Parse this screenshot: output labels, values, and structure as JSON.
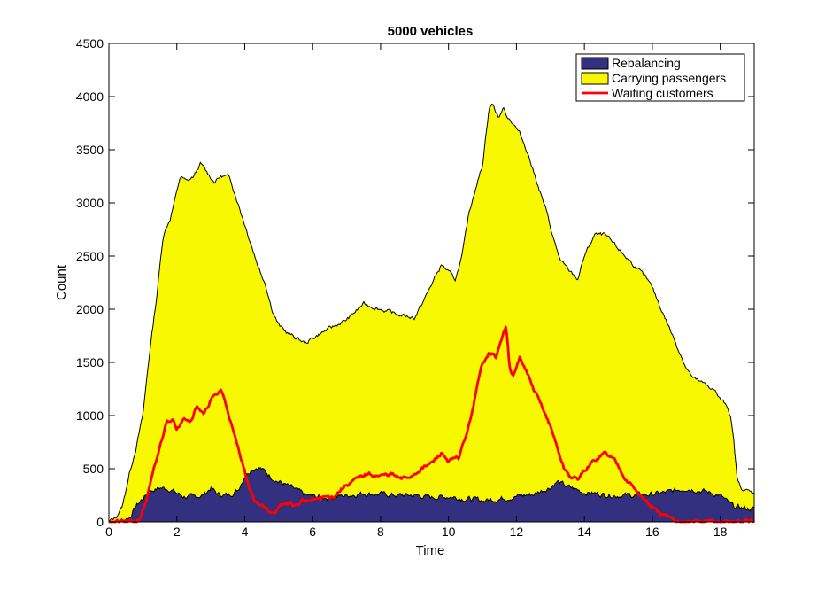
{
  "chart_data": {
    "type": "area",
    "title": "5000 vehicles",
    "xlabel": "Time",
    "ylabel": "Count",
    "xlim": [
      0,
      19
    ],
    "ylim": [
      0,
      4500
    ],
    "xticks": [
      0,
      2,
      4,
      6,
      8,
      10,
      12,
      14,
      16,
      18
    ],
    "yticks": [
      0,
      500,
      1000,
      1500,
      2000,
      2500,
      3000,
      3500,
      4000,
      4500
    ],
    "grid": false,
    "legend_position": "top-right",
    "series": [
      {
        "name": "Rebalancing",
        "kind": "stacked-area",
        "color": "#33307f",
        "points": [
          [
            0,
            0
          ],
          [
            0.3,
            10
          ],
          [
            0.6,
            40
          ],
          [
            0.8,
            150
          ],
          [
            1.0,
            220
          ],
          [
            1.2,
            290
          ],
          [
            1.5,
            320
          ],
          [
            1.8,
            310
          ],
          [
            2.0,
            270
          ],
          [
            2.2,
            240
          ],
          [
            2.5,
            230
          ],
          [
            2.8,
            260
          ],
          [
            3.0,
            320
          ],
          [
            3.2,
            260
          ],
          [
            3.5,
            250
          ],
          [
            3.8,
            300
          ],
          [
            4.0,
            440
          ],
          [
            4.2,
            500
          ],
          [
            4.4,
            520
          ],
          [
            4.6,
            470
          ],
          [
            4.8,
            420
          ],
          [
            5.0,
            380
          ],
          [
            5.2,
            350
          ],
          [
            5.5,
            300
          ],
          [
            5.8,
            250
          ],
          [
            6.0,
            240
          ],
          [
            6.5,
            230
          ],
          [
            7.0,
            250
          ],
          [
            7.5,
            270
          ],
          [
            8.0,
            260
          ],
          [
            8.5,
            250
          ],
          [
            9.0,
            250
          ],
          [
            9.5,
            230
          ],
          [
            10.0,
            240
          ],
          [
            10.5,
            220
          ],
          [
            11.0,
            200
          ],
          [
            11.5,
            220
          ],
          [
            12.0,
            240
          ],
          [
            12.5,
            260
          ],
          [
            13.0,
            330
          ],
          [
            13.2,
            380
          ],
          [
            13.5,
            330
          ],
          [
            14.0,
            280
          ],
          [
            14.5,
            260
          ],
          [
            15.0,
            250
          ],
          [
            15.5,
            250
          ],
          [
            16.0,
            260
          ],
          [
            16.5,
            280
          ],
          [
            17.0,
            320
          ],
          [
            17.5,
            290
          ],
          [
            18.0,
            250
          ],
          [
            18.2,
            190
          ],
          [
            18.4,
            140
          ],
          [
            19.0,
            120
          ]
        ]
      },
      {
        "name": "Carrying passengers",
        "kind": "stacked-area-top",
        "color": "#f8f800",
        "points": [
          [
            0,
            0
          ],
          [
            0.2,
            40
          ],
          [
            0.4,
            150
          ],
          [
            0.6,
            450
          ],
          [
            0.8,
            700
          ],
          [
            1.0,
            1000
          ],
          [
            1.2,
            1600
          ],
          [
            1.4,
            2100
          ],
          [
            1.6,
            2700
          ],
          [
            1.8,
            2850
          ],
          [
            2.0,
            3100
          ],
          [
            2.1,
            3250
          ],
          [
            2.3,
            3200
          ],
          [
            2.5,
            3250
          ],
          [
            2.7,
            3370
          ],
          [
            2.9,
            3280
          ],
          [
            3.1,
            3200
          ],
          [
            3.3,
            3250
          ],
          [
            3.5,
            3250
          ],
          [
            3.6,
            3200
          ],
          [
            3.8,
            3000
          ],
          [
            4.0,
            2800
          ],
          [
            4.2,
            2600
          ],
          [
            4.4,
            2400
          ],
          [
            4.6,
            2250
          ],
          [
            4.8,
            2000
          ],
          [
            5.0,
            1850
          ],
          [
            5.2,
            1790
          ],
          [
            5.5,
            1730
          ],
          [
            5.8,
            1680
          ],
          [
            6.0,
            1730
          ],
          [
            6.5,
            1820
          ],
          [
            7.0,
            1900
          ],
          [
            7.5,
            2050
          ],
          [
            8.0,
            2000
          ],
          [
            8.5,
            1950
          ],
          [
            9.0,
            1920
          ],
          [
            9.3,
            2100
          ],
          [
            9.6,
            2300
          ],
          [
            9.8,
            2420
          ],
          [
            10.0,
            2350
          ],
          [
            10.2,
            2280
          ],
          [
            10.4,
            2500
          ],
          [
            10.6,
            2900
          ],
          [
            10.8,
            3150
          ],
          [
            11.0,
            3350
          ],
          [
            11.1,
            3650
          ],
          [
            11.2,
            3900
          ],
          [
            11.3,
            3930
          ],
          [
            11.4,
            3850
          ],
          [
            11.5,
            3800
          ],
          [
            11.6,
            3900
          ],
          [
            11.7,
            3830
          ],
          [
            11.9,
            3750
          ],
          [
            12.1,
            3650
          ],
          [
            12.3,
            3500
          ],
          [
            12.5,
            3300
          ],
          [
            12.7,
            3100
          ],
          [
            12.9,
            2900
          ],
          [
            13.1,
            2650
          ],
          [
            13.3,
            2450
          ],
          [
            13.5,
            2380
          ],
          [
            13.8,
            2280
          ],
          [
            14.0,
            2500
          ],
          [
            14.3,
            2700
          ],
          [
            14.6,
            2700
          ],
          [
            14.9,
            2600
          ],
          [
            15.2,
            2500
          ],
          [
            15.5,
            2400
          ],
          [
            15.8,
            2300
          ],
          [
            16.0,
            2200
          ],
          [
            16.2,
            2050
          ],
          [
            16.4,
            1900
          ],
          [
            16.6,
            1750
          ],
          [
            16.8,
            1600
          ],
          [
            17.0,
            1450
          ],
          [
            17.2,
            1350
          ],
          [
            17.5,
            1300
          ],
          [
            17.8,
            1250
          ],
          [
            18.0,
            1150
          ],
          [
            18.2,
            1100
          ],
          [
            18.3,
            1000
          ],
          [
            18.4,
            750
          ],
          [
            18.5,
            400
          ],
          [
            18.6,
            320
          ],
          [
            19.0,
            265
          ]
        ]
      },
      {
        "name": "Waiting customers",
        "kind": "line",
        "color": "#ff0000",
        "points": [
          [
            0,
            0
          ],
          [
            0.5,
            0
          ],
          [
            0.8,
            0
          ],
          [
            0.9,
            30
          ],
          [
            1.1,
            200
          ],
          [
            1.3,
            450
          ],
          [
            1.5,
            700
          ],
          [
            1.7,
            950
          ],
          [
            1.9,
            980
          ],
          [
            2.0,
            850
          ],
          [
            2.2,
            1000
          ],
          [
            2.4,
            950
          ],
          [
            2.6,
            1100
          ],
          [
            2.8,
            1000
          ],
          [
            3.0,
            1150
          ],
          [
            3.2,
            1200
          ],
          [
            3.3,
            1250
          ],
          [
            3.5,
            1050
          ],
          [
            3.7,
            800
          ],
          [
            3.9,
            600
          ],
          [
            4.1,
            350
          ],
          [
            4.3,
            200
          ],
          [
            4.5,
            150
          ],
          [
            4.7,
            100
          ],
          [
            4.9,
            100
          ],
          [
            5.1,
            150
          ],
          [
            5.3,
            180
          ],
          [
            5.5,
            150
          ],
          [
            5.7,
            200
          ],
          [
            6.0,
            200
          ],
          [
            6.3,
            230
          ],
          [
            6.6,
            240
          ],
          [
            7.0,
            350
          ],
          [
            7.3,
            400
          ],
          [
            7.6,
            450
          ],
          [
            8.0,
            430
          ],
          [
            8.3,
            450
          ],
          [
            8.6,
            400
          ],
          [
            8.9,
            430
          ],
          [
            9.2,
            500
          ],
          [
            9.5,
            550
          ],
          [
            9.8,
            650
          ],
          [
            10.0,
            570
          ],
          [
            10.3,
            600
          ],
          [
            10.6,
            900
          ],
          [
            10.8,
            1200
          ],
          [
            11.0,
            1500
          ],
          [
            11.2,
            1600
          ],
          [
            11.4,
            1550
          ],
          [
            11.6,
            1750
          ],
          [
            11.7,
            1850
          ],
          [
            11.8,
            1450
          ],
          [
            11.9,
            1350
          ],
          [
            12.1,
            1550
          ],
          [
            12.3,
            1400
          ],
          [
            12.5,
            1250
          ],
          [
            12.8,
            1050
          ],
          [
            13.0,
            900
          ],
          [
            13.2,
            700
          ],
          [
            13.4,
            500
          ],
          [
            13.6,
            420
          ],
          [
            13.8,
            400
          ],
          [
            14.0,
            480
          ],
          [
            14.3,
            580
          ],
          [
            14.6,
            650
          ],
          [
            14.9,
            580
          ],
          [
            15.2,
            420
          ],
          [
            15.5,
            300
          ],
          [
            15.8,
            200
          ],
          [
            16.1,
            100
          ],
          [
            16.4,
            50
          ],
          [
            16.7,
            10
          ],
          [
            17.0,
            0
          ],
          [
            18.0,
            0
          ],
          [
            19.0,
            0
          ]
        ]
      }
    ]
  }
}
